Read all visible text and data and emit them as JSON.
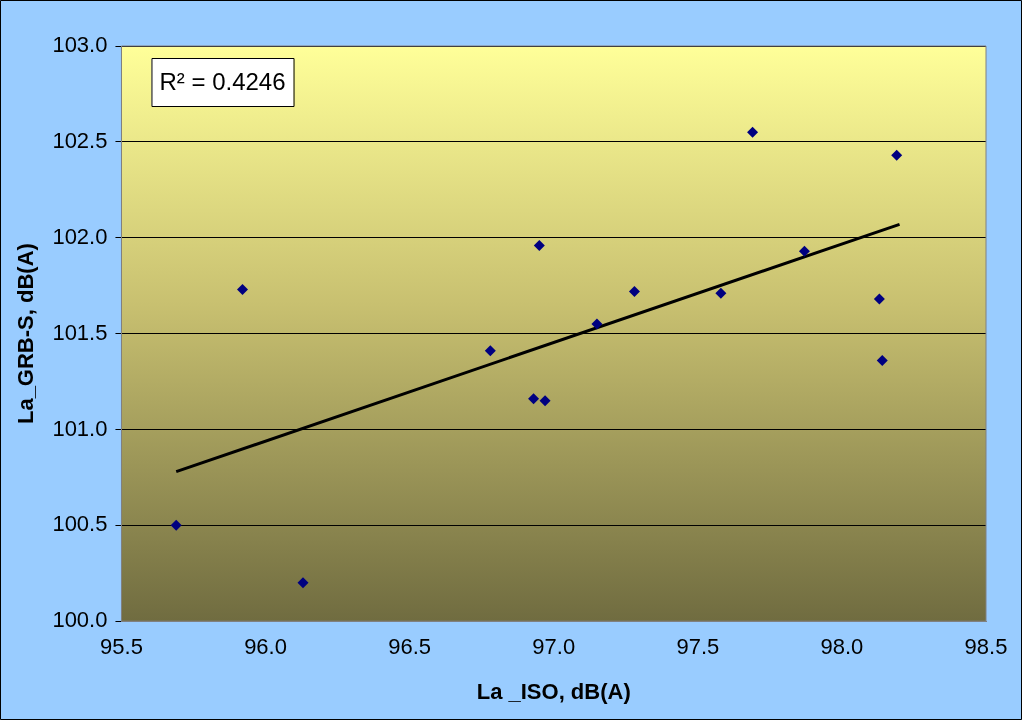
{
  "chart_data": {
    "type": "scatter",
    "xlabel": "La _ISO, dB(A)",
    "ylabel": "La_GRB-S, dB(A)",
    "annotations": [
      "R² = 0.4246"
    ],
    "series": [
      {
        "type": "scatter",
        "color": "#000080",
        "marker": "diamond",
        "x": [
          95.69,
          95.92,
          96.13,
          96.78,
          96.93,
          96.97,
          96.95,
          97.15,
          97.28,
          97.58,
          97.69,
          97.87,
          98.13,
          98.14,
          98.19
        ],
        "values": [
          100.5,
          101.73,
          100.2,
          101.41,
          101.16,
          101.15,
          101.96,
          101.55,
          101.72,
          101.71,
          102.55,
          101.93,
          101.68,
          101.36,
          102.43
        ]
      },
      {
        "type": "line",
        "color": "#000000",
        "marker": "none",
        "x": [
          95.69,
          98.2
        ],
        "values": [
          100.78,
          102.07
        ]
      }
    ],
    "xlim": [
      95.5,
      98.5
    ],
    "xticks": [
      {
        "value": 95.5,
        "label": "95.5"
      },
      {
        "value": 96,
        "label": "96.0"
      },
      {
        "value": 96.5,
        "label": "96.5"
      },
      {
        "value": 97,
        "label": "97.0"
      },
      {
        "value": 97.5,
        "label": "97.5"
      },
      {
        "value": 98,
        "label": "98.0"
      },
      {
        "value": 98.5,
        "label": "98.5"
      }
    ],
    "ylim": [
      100,
      103
    ],
    "yticks": [
      {
        "value": 100,
        "label": "100.0"
      },
      {
        "value": 100.5,
        "label": "100.5"
      },
      {
        "value": 101,
        "label": "101.0"
      },
      {
        "value": 101.5,
        "label": "101.5"
      },
      {
        "value": 102,
        "label": "102.0"
      },
      {
        "value": 102.5,
        "label": "102.5"
      },
      {
        "value": 103,
        "label": "103.0"
      }
    ],
    "grid": "y",
    "legend": false
  }
}
